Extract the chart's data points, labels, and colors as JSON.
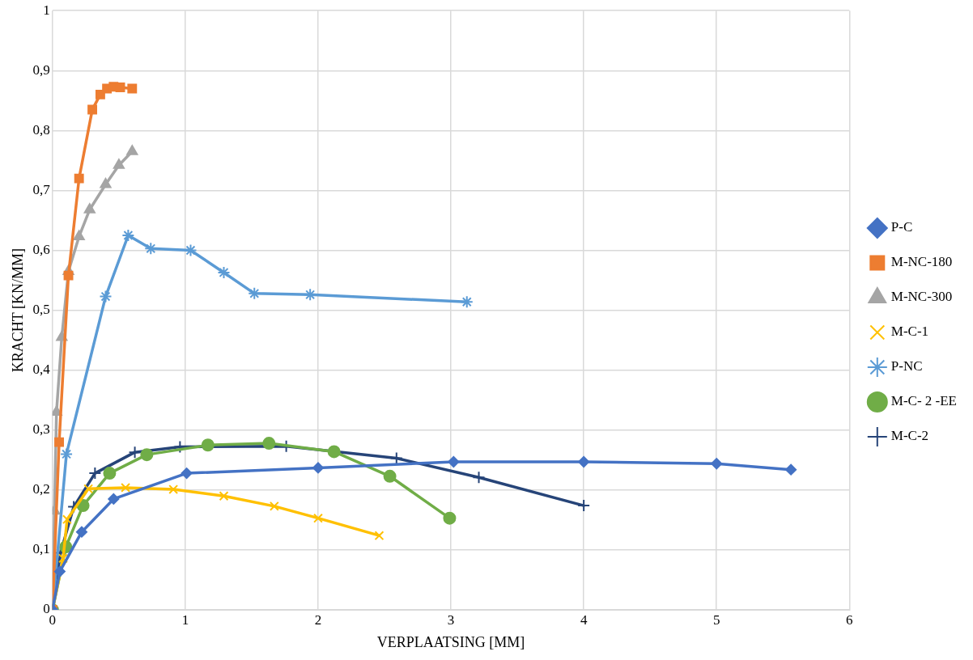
{
  "chart_data": {
    "type": "line",
    "xlabel": "VERPLAATSING [MM]",
    "ylabel": "KRACHT [KN/MM]",
    "xlim": [
      0,
      6
    ],
    "xticks": [
      0,
      1,
      2,
      3,
      4,
      5,
      6
    ],
    "ylim": [
      0,
      1
    ],
    "yticks": [
      0,
      {
        "value": 0.1,
        "label": "0,1"
      },
      {
        "value": 0.2,
        "label": "0,2"
      },
      {
        "value": 0.3,
        "label": "0,3"
      },
      {
        "value": 0.4,
        "label": "0,4"
      },
      {
        "value": 0.5,
        "label": "0,5"
      },
      {
        "value": 0.6,
        "label": "0,6"
      },
      {
        "value": 0.7,
        "label": "0,7"
      },
      {
        "value": 0.8,
        "label": "0,8"
      },
      {
        "value": 0.9,
        "label": "0,9"
      },
      1
    ],
    "grid": true,
    "legend": "right",
    "series": [
      {
        "name": "P-C",
        "color": "#4472c4",
        "marker": "diamond",
        "x": [
          0,
          0.055,
          0.22,
          0.46,
          1.01,
          2.0,
          3.02,
          4.0,
          5.0,
          5.56
        ],
        "values": [
          0,
          0.064,
          0.13,
          0.185,
          0.228,
          0.237,
          0.247,
          0.247,
          0.244,
          0.234
        ]
      },
      {
        "name": "M-NC-180",
        "color": "#ed7d31",
        "marker": "square",
        "x": [
          0,
          0.05,
          0.12,
          0.2,
          0.3,
          0.36,
          0.41,
          0.46,
          0.51,
          0.6
        ],
        "values": [
          0,
          0.28,
          0.558,
          0.72,
          0.835,
          0.86,
          0.87,
          0.873,
          0.872,
          0.87
        ]
      },
      {
        "name": "M-NC-300",
        "color": "#a5a5a5",
        "marker": "triangle",
        "x": [
          0,
          0.015,
          0.03,
          0.07,
          0.12,
          0.2,
          0.28,
          0.4,
          0.5,
          0.6
        ],
        "values": [
          0,
          0.165,
          0.33,
          0.455,
          0.565,
          0.623,
          0.668,
          0.71,
          0.742,
          0.765
        ]
      },
      {
        "name": "M-C-1",
        "color": "#ffc000",
        "marker": "x",
        "x": [
          0,
          0.08,
          0.11,
          0.27,
          0.55,
          0.91,
          1.29,
          1.67,
          2.0,
          2.46
        ],
        "values": [
          0,
          0.086,
          0.151,
          0.202,
          0.204,
          0.201,
          0.19,
          0.173,
          0.153,
          0.124
        ]
      },
      {
        "name": "P-NC",
        "color": "#5b9bd5",
        "marker": "cross",
        "x": [
          0,
          0.105,
          0.4,
          0.57,
          0.74,
          1.04,
          1.29,
          1.52,
          1.94,
          3.12
        ],
        "values": [
          0,
          0.26,
          0.523,
          0.625,
          0.603,
          0.6,
          0.563,
          0.528,
          0.526,
          0.514
        ]
      },
      {
        "name": "M-C- 2 -EE",
        "color": "#70ad47",
        "marker": "circle",
        "x": [
          0,
          0.1,
          0.23,
          0.43,
          0.71,
          1.17,
          1.63,
          2.12,
          2.54,
          2.99
        ],
        "values": [
          0,
          0.105,
          0.174,
          0.228,
          0.259,
          0.275,
          0.278,
          0.264,
          0.223,
          0.153
        ]
      },
      {
        "name": "M-C-2",
        "color": "#264478",
        "marker": "plus",
        "x": [
          0,
          0.06,
          0.16,
          0.32,
          0.62,
          0.96,
          1.76,
          2.59,
          3.21,
          4.0
        ],
        "values": [
          0,
          0.095,
          0.172,
          0.228,
          0.263,
          0.272,
          0.273,
          0.253,
          0.221,
          0.174
        ]
      }
    ]
  }
}
